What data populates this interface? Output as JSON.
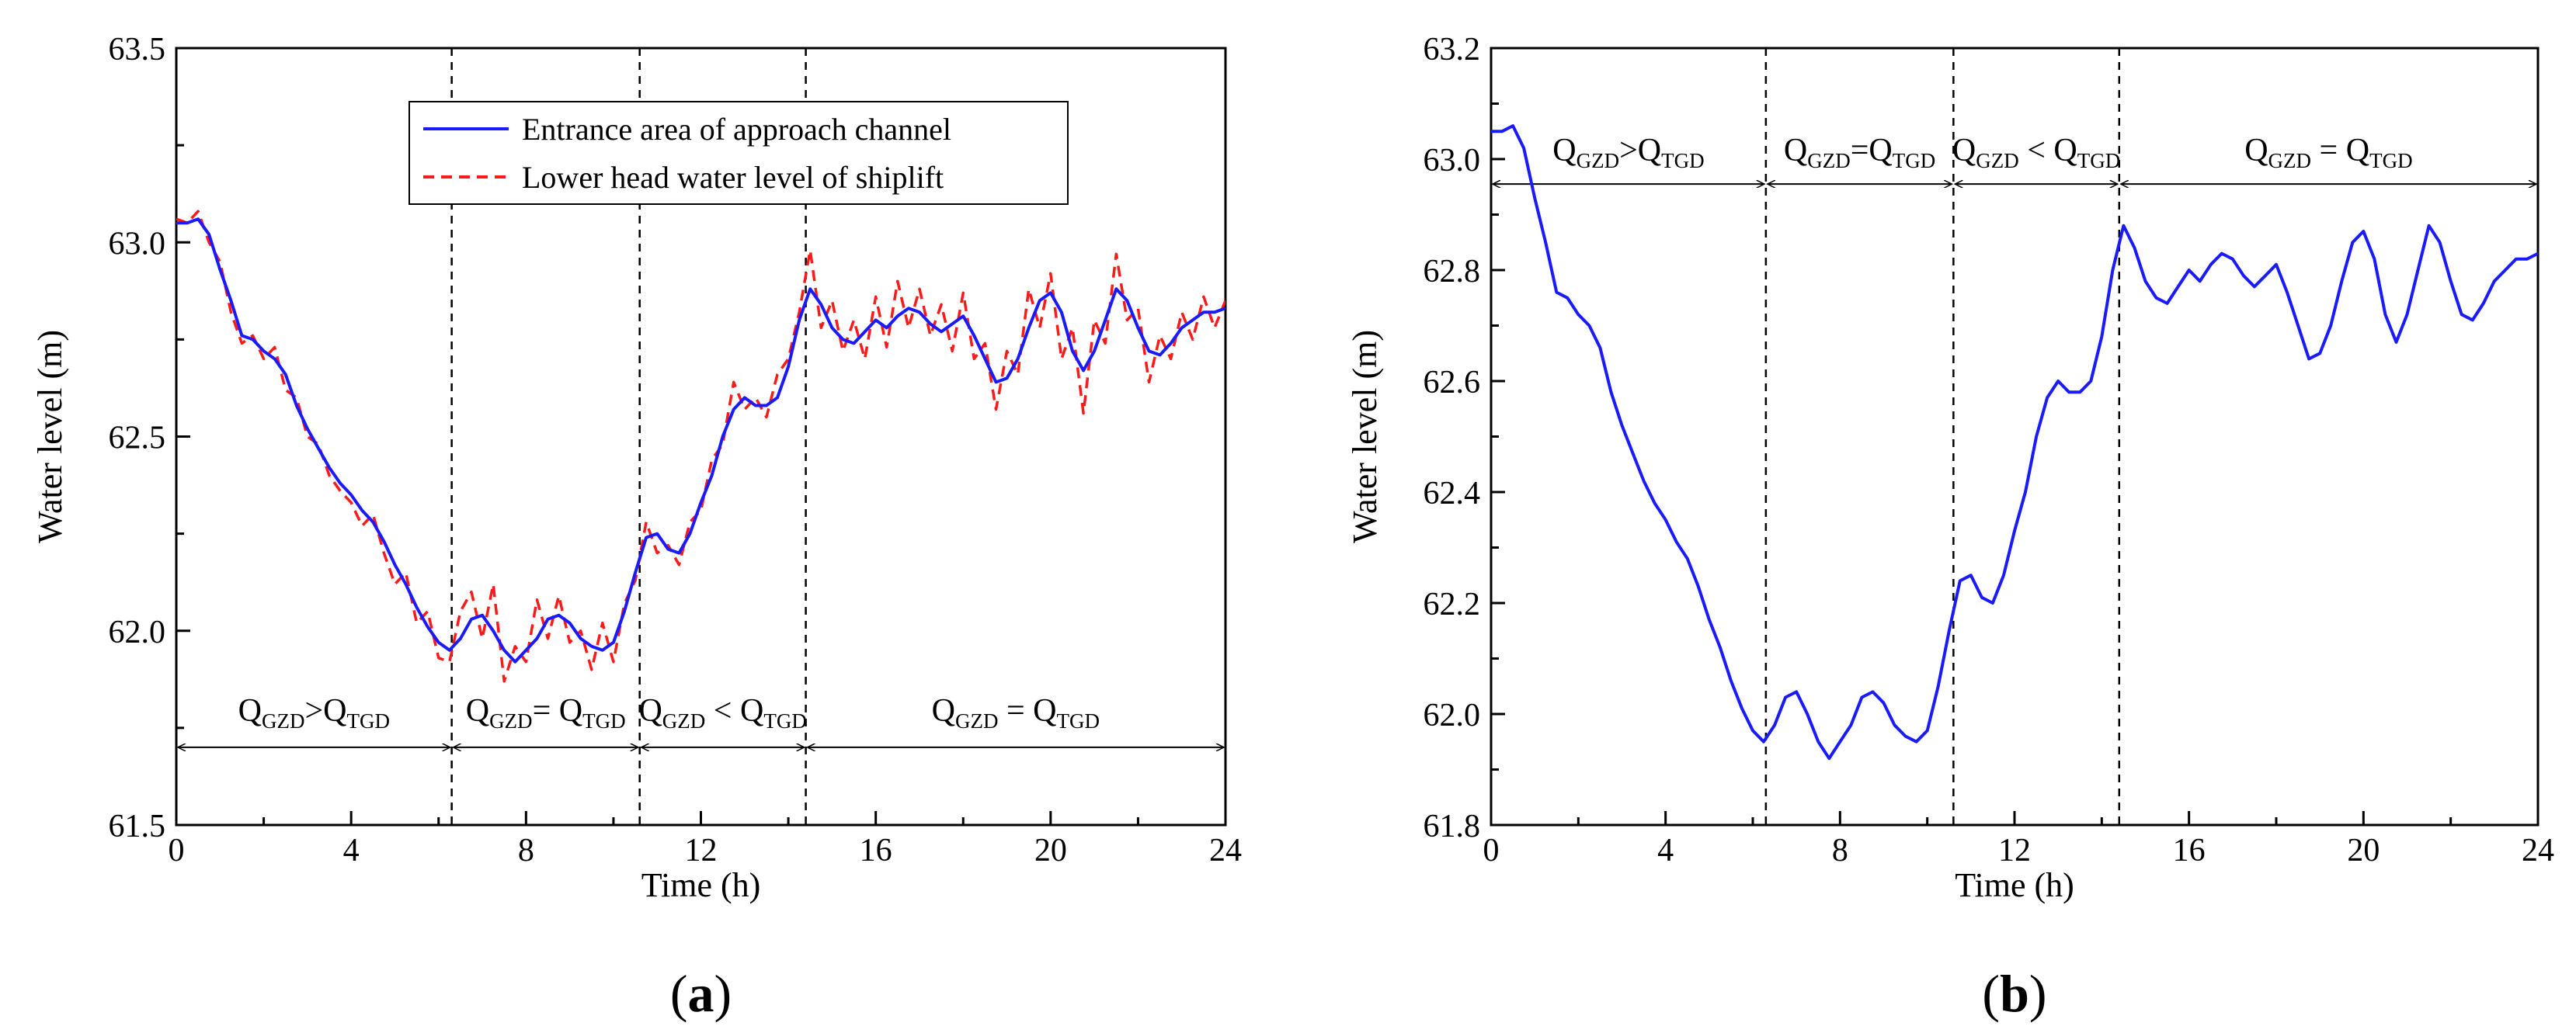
{
  "figure": {
    "panel_labels": [
      {
        "open": "(",
        "letter": "a",
        "close": ")"
      },
      {
        "open": "(",
        "letter": "b",
        "close": ")"
      }
    ]
  },
  "chart_data": [
    {
      "type": "line",
      "panel": "a",
      "xlabel": "Time (h)",
      "ylabel": "Water level (m)",
      "xlim": [
        0,
        24
      ],
      "ylim": [
        61.5,
        63.5
      ],
      "xticks": [
        0,
        4,
        8,
        12,
        16,
        20,
        24
      ],
      "yticks": [
        61.5,
        62.0,
        62.5,
        63.0,
        63.5
      ],
      "ytick_labels": [
        "61.5",
        "62.0",
        "62.5",
        "63.0",
        "63.5"
      ],
      "colors": {
        "series1": "#1a1aff",
        "series2": "#ff1a1a"
      },
      "legend": {
        "position": "top-center",
        "entries": [
          "Entrance area of approach channel",
          "Lower head water level of shiplift"
        ]
      },
      "vlines": [
        6.3,
        10.6,
        14.4
      ],
      "region_arrow_y": 61.7,
      "regions": [
        {
          "x0": 0,
          "x1": 6.3,
          "text": "Q",
          "sub1": "GZD",
          "op": ">Q",
          "sub2": "TGD"
        },
        {
          "x0": 6.3,
          "x1": 10.6,
          "text": "Q",
          "sub1": "GZD",
          "op": "= Q",
          "sub2": "TGD"
        },
        {
          "x0": 10.6,
          "x1": 14.4,
          "text": "Q",
          "sub1": "GZD",
          "op": " < Q",
          "sub2": "TGD"
        },
        {
          "x0": 14.4,
          "x1": 24,
          "text": "Q",
          "sub1": "GZD",
          "op": " = Q",
          "sub2": "TGD"
        }
      ],
      "series": [
        {
          "name": "Entrance area of approach channel",
          "style": "solid",
          "x": [
            0,
            0.25,
            0.5,
            0.75,
            1,
            1.25,
            1.5,
            1.75,
            2,
            2.25,
            2.5,
            2.75,
            3,
            3.25,
            3.5,
            3.75,
            4,
            4.25,
            4.5,
            4.75,
            5,
            5.25,
            5.5,
            5.75,
            6,
            6.25,
            6.5,
            6.75,
            7,
            7.25,
            7.5,
            7.75,
            8,
            8.25,
            8.5,
            8.75,
            9,
            9.25,
            9.5,
            9.75,
            10,
            10.25,
            10.5,
            10.75,
            11,
            11.25,
            11.5,
            11.75,
            12,
            12.25,
            12.5,
            12.75,
            13,
            13.25,
            13.5,
            13.75,
            14,
            14.25,
            14.5,
            14.75,
            15,
            15.25,
            15.5,
            15.75,
            16,
            16.25,
            16.5,
            16.75,
            17,
            17.25,
            17.5,
            17.75,
            18,
            18.25,
            18.5,
            18.75,
            19,
            19.25,
            19.5,
            19.75,
            20,
            20.25,
            20.5,
            20.75,
            21,
            21.25,
            21.5,
            21.75,
            22,
            22.25,
            22.5,
            22.75,
            23,
            23.25,
            23.5,
            23.75,
            24
          ],
          "y": [
            63.05,
            63.05,
            63.06,
            63.02,
            62.93,
            62.85,
            62.76,
            62.75,
            62.72,
            62.7,
            62.66,
            62.58,
            62.52,
            62.47,
            62.42,
            62.38,
            62.35,
            62.31,
            62.28,
            62.23,
            62.17,
            62.12,
            62.06,
            62.01,
            61.97,
            61.95,
            61.98,
            62.03,
            62.04,
            62.0,
            61.95,
            61.92,
            61.95,
            61.98,
            62.03,
            62.04,
            62.02,
            61.98,
            61.96,
            61.95,
            61.97,
            62.05,
            62.15,
            62.24,
            62.25,
            62.21,
            62.2,
            62.25,
            62.33,
            62.4,
            62.5,
            62.57,
            62.6,
            62.58,
            62.58,
            62.6,
            62.68,
            62.8,
            62.88,
            62.84,
            62.78,
            62.75,
            62.74,
            62.77,
            62.8,
            62.78,
            62.81,
            62.83,
            62.82,
            62.79,
            62.77,
            62.79,
            62.81,
            62.76,
            62.7,
            62.64,
            62.65,
            62.7,
            62.78,
            62.85,
            62.87,
            62.82,
            62.72,
            62.67,
            62.72,
            62.8,
            62.88,
            62.85,
            62.78,
            62.72,
            62.71,
            62.74,
            62.78,
            62.8,
            62.82,
            62.82,
            62.83
          ]
        },
        {
          "name": "Lower head water level of shiplift",
          "style": "dashed",
          "x": [
            0,
            0.25,
            0.5,
            0.75,
            1,
            1.25,
            1.5,
            1.75,
            2,
            2.25,
            2.5,
            2.75,
            3,
            3.25,
            3.5,
            3.75,
            4,
            4.25,
            4.5,
            4.75,
            5,
            5.25,
            5.5,
            5.75,
            6,
            6.25,
            6.5,
            6.75,
            7,
            7.25,
            7.5,
            7.75,
            8,
            8.25,
            8.5,
            8.75,
            9,
            9.25,
            9.5,
            9.75,
            10,
            10.25,
            10.5,
            10.75,
            11,
            11.25,
            11.5,
            11.75,
            12,
            12.25,
            12.5,
            12.75,
            13,
            13.25,
            13.5,
            13.75,
            14,
            14.25,
            14.5,
            14.75,
            15,
            15.25,
            15.5,
            15.75,
            16,
            16.25,
            16.5,
            16.75,
            17,
            17.25,
            17.5,
            17.75,
            18,
            18.25,
            18.5,
            18.75,
            19,
            19.25,
            19.5,
            19.75,
            20,
            20.25,
            20.5,
            20.75,
            21,
            21.25,
            21.5,
            21.75,
            22,
            22.25,
            22.5,
            22.75,
            23,
            23.25,
            23.5,
            23.75,
            24
          ],
          "y": [
            63.06,
            63.05,
            63.08,
            63.0,
            62.95,
            62.82,
            62.74,
            62.76,
            62.7,
            62.73,
            62.62,
            62.6,
            62.5,
            62.48,
            62.4,
            62.36,
            62.33,
            62.27,
            62.3,
            62.2,
            62.12,
            62.15,
            62.02,
            62.05,
            61.93,
            61.92,
            62.05,
            62.1,
            61.98,
            62.12,
            61.87,
            61.96,
            61.92,
            62.08,
            61.98,
            62.09,
            61.97,
            62.0,
            61.9,
            62.02,
            61.92,
            62.07,
            62.13,
            62.28,
            62.2,
            62.22,
            62.17,
            62.28,
            62.31,
            62.44,
            62.48,
            62.64,
            62.57,
            62.6,
            62.55,
            62.66,
            62.7,
            62.82,
            62.98,
            62.78,
            62.85,
            62.72,
            62.8,
            62.7,
            62.86,
            62.73,
            62.9,
            62.78,
            62.88,
            62.76,
            62.84,
            62.72,
            62.87,
            62.7,
            62.74,
            62.57,
            62.72,
            62.66,
            62.88,
            62.78,
            62.92,
            62.7,
            62.78,
            62.56,
            62.8,
            62.74,
            62.97,
            62.8,
            62.83,
            62.64,
            62.76,
            62.7,
            62.82,
            62.75,
            62.86,
            62.78,
            62.85
          ]
        }
      ]
    },
    {
      "type": "line",
      "panel": "b",
      "xlabel": "Time (h)",
      "ylabel": "Water level (m)",
      "xlim": [
        0,
        24
      ],
      "ylim": [
        61.8,
        63.2
      ],
      "xticks": [
        0,
        4,
        8,
        12,
        16,
        20,
        24
      ],
      "yticks": [
        61.8,
        62.0,
        62.2,
        62.4,
        62.6,
        62.8,
        63.0,
        63.2
      ],
      "ytick_labels": [
        "61.8",
        "62.0",
        "62.2",
        "62.4",
        "62.6",
        "62.8",
        "63.0",
        "63.2"
      ],
      "colors": {
        "series1": "#1a1aff"
      },
      "vlines": [
        6.3,
        10.6,
        14.4
      ],
      "region_arrow_y": 62.955,
      "regions": [
        {
          "x0": 0,
          "x1": 6.3,
          "text": "Q",
          "sub1": "GZD",
          "op": ">Q",
          "sub2": "TGD"
        },
        {
          "x0": 6.3,
          "x1": 10.6,
          "text": "Q",
          "sub1": "GZD",
          "op": "=Q",
          "sub2": "TGD"
        },
        {
          "x0": 10.6,
          "x1": 14.4,
          "text": "Q",
          "sub1": "GZD",
          "op": " < Q",
          "sub2": "TGD"
        },
        {
          "x0": 14.4,
          "x1": 24,
          "text": "Q",
          "sub1": "GZD",
          "op": " = Q",
          "sub2": "TGD"
        }
      ],
      "series": [
        {
          "name": "Entrance area of approach channel",
          "style": "solid",
          "x": [
            0,
            0.25,
            0.5,
            0.75,
            1,
            1.25,
            1.5,
            1.75,
            2,
            2.25,
            2.5,
            2.75,
            3,
            3.25,
            3.5,
            3.75,
            4,
            4.25,
            4.5,
            4.75,
            5,
            5.25,
            5.5,
            5.75,
            6,
            6.25,
            6.5,
            6.75,
            7,
            7.25,
            7.5,
            7.75,
            8,
            8.25,
            8.5,
            8.75,
            9,
            9.25,
            9.5,
            9.75,
            10,
            10.25,
            10.5,
            10.75,
            11,
            11.25,
            11.5,
            11.75,
            12,
            12.25,
            12.5,
            12.75,
            13,
            13.25,
            13.5,
            13.75,
            14,
            14.25,
            14.5,
            14.75,
            15,
            15.25,
            15.5,
            15.75,
            16,
            16.25,
            16.5,
            16.75,
            17,
            17.25,
            17.5,
            17.75,
            18,
            18.25,
            18.5,
            18.75,
            19,
            19.25,
            19.5,
            19.75,
            20,
            20.25,
            20.5,
            20.75,
            21,
            21.25,
            21.5,
            21.75,
            22,
            22.25,
            22.5,
            22.75,
            23,
            23.25,
            23.5,
            23.75,
            24
          ],
          "y": [
            63.05,
            63.05,
            63.06,
            63.02,
            62.93,
            62.85,
            62.76,
            62.75,
            62.72,
            62.7,
            62.66,
            62.58,
            62.52,
            62.47,
            62.42,
            62.38,
            62.35,
            62.31,
            62.28,
            62.23,
            62.17,
            62.12,
            62.06,
            62.01,
            61.97,
            61.95,
            61.98,
            62.03,
            62.04,
            62.0,
            61.95,
            61.92,
            61.95,
            61.98,
            62.03,
            62.04,
            62.02,
            61.98,
            61.96,
            61.95,
            61.97,
            62.05,
            62.15,
            62.24,
            62.25,
            62.21,
            62.2,
            62.25,
            62.33,
            62.4,
            62.5,
            62.57,
            62.6,
            62.58,
            62.58,
            62.6,
            62.68,
            62.8,
            62.88,
            62.84,
            62.78,
            62.75,
            62.74,
            62.77,
            62.8,
            62.78,
            62.81,
            62.83,
            62.82,
            62.79,
            62.77,
            62.79,
            62.81,
            62.76,
            62.7,
            62.64,
            62.65,
            62.7,
            62.78,
            62.85,
            62.87,
            62.82,
            62.72,
            62.67,
            62.72,
            62.8,
            62.88,
            62.85,
            62.78,
            62.72,
            62.71,
            62.74,
            62.78,
            62.8,
            62.82,
            62.82,
            62.83
          ]
        }
      ]
    }
  ]
}
